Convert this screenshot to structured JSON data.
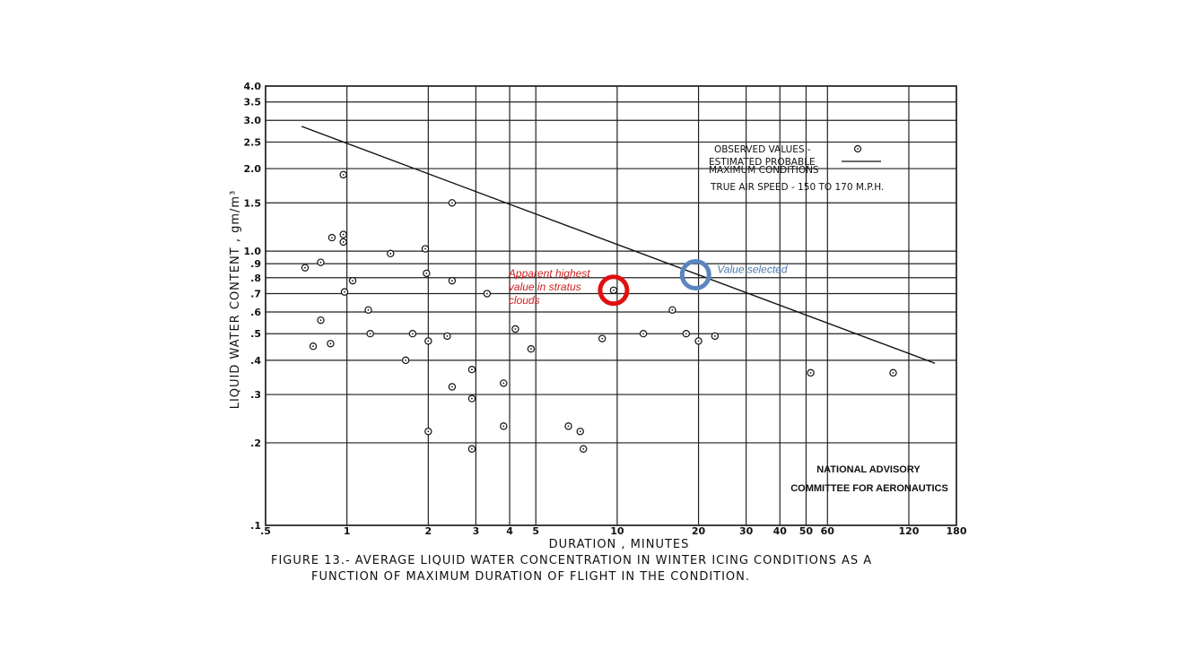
{
  "chart_data": {
    "type": "scatter",
    "title": "",
    "xlabel": "DURATION , MINUTES",
    "ylabel": "LIQUID WATER CONTENT ,  gm/m³",
    "xscale": "log",
    "yscale": "log",
    "xlim": [
      0.5,
      180
    ],
    "ylim": [
      0.1,
      4.0
    ],
    "grid": true,
    "x_ticks": [
      0.5,
      1,
      2,
      3,
      4,
      5,
      10,
      20,
      30,
      40,
      50,
      60,
      120,
      180
    ],
    "x_tick_labels": [
      ".5",
      "1",
      "2",
      "3",
      "4",
      "5",
      "10",
      "20",
      "30",
      "40",
      "50",
      "60",
      "120",
      "180"
    ],
    "y_ticks": [
      0.1,
      0.2,
      0.3,
      0.4,
      0.5,
      0.6,
      0.7,
      0.8,
      0.9,
      1.0,
      1.5,
      2.0,
      2.5,
      3.0,
      3.5,
      4.0
    ],
    "y_tick_labels": [
      ".1",
      ".2",
      ".3",
      ".4",
      ".5",
      ".6",
      ".7",
      ".8",
      ".9",
      "1.0",
      "1.5",
      "2.0",
      "2.5",
      "3.0",
      "3.5",
      "4.0"
    ],
    "series": [
      {
        "name": "OBSERVED VALUES",
        "marker": "circle-dot",
        "points": [
          [
            0.7,
            0.87
          ],
          [
            0.75,
            0.45
          ],
          [
            0.8,
            0.91
          ],
          [
            0.8,
            0.56
          ],
          [
            0.87,
            0.46
          ],
          [
            0.88,
            1.12
          ],
          [
            0.97,
            1.9
          ],
          [
            0.97,
            1.15
          ],
          [
            0.97,
            1.08
          ],
          [
            0.98,
            0.71
          ],
          [
            1.05,
            0.78
          ],
          [
            1.2,
            0.61
          ],
          [
            1.22,
            0.5
          ],
          [
            1.45,
            0.98
          ],
          [
            1.65,
            0.4
          ],
          [
            1.75,
            0.5
          ],
          [
            1.95,
            1.02
          ],
          [
            1.97,
            0.83
          ],
          [
            2.0,
            0.47
          ],
          [
            2.0,
            0.22
          ],
          [
            2.35,
            0.49
          ],
          [
            2.45,
            0.78
          ],
          [
            2.45,
            0.32
          ],
          [
            2.45,
            1.5
          ],
          [
            2.9,
            0.37
          ],
          [
            2.9,
            0.29
          ],
          [
            2.9,
            0.19
          ],
          [
            3.3,
            0.7
          ],
          [
            3.8,
            0.33
          ],
          [
            3.8,
            0.23
          ],
          [
            4.2,
            0.52
          ],
          [
            4.8,
            0.44
          ],
          [
            6.6,
            0.23
          ],
          [
            7.3,
            0.22
          ],
          [
            7.5,
            0.19
          ],
          [
            8.8,
            0.48
          ],
          [
            9.7,
            0.72
          ],
          [
            12.5,
            0.5
          ],
          [
            16.0,
            0.61
          ],
          [
            18.0,
            0.5
          ],
          [
            20.0,
            0.47
          ],
          [
            23.0,
            0.49
          ],
          [
            52.0,
            0.36
          ],
          [
            105.0,
            0.36
          ]
        ]
      },
      {
        "name": "ESTIMATED PROBABLE MAXIMUM CONDITIONS",
        "type": "line",
        "points": [
          [
            0.68,
            2.85
          ],
          [
            150.0,
            0.39
          ]
        ]
      }
    ],
    "legend": {
      "position": "top-right",
      "observed_label": "OBSERVED VALUES  -  ",
      "estimated_label_line1": "ESTIMATED PROBABLE",
      "estimated_label_line2": "MAXIMUM CONDITIONS",
      "air_speed_label": "TRUE AIR SPEED - 150 TO 170 M.P.H."
    },
    "credit_line1": "NATIONAL ADVISORY",
    "credit_line2": "COMMITTEE FOR AERONAUTICS",
    "annotations": [
      {
        "text": [
          "Apparent highest",
          "value in stratus",
          "clouds"
        ],
        "x": 9.7,
        "y": 0.72,
        "color": "#e01010",
        "text_color": "#cc2222"
      },
      {
        "text": [
          "Value selected"
        ],
        "x": 19.5,
        "y": 0.82,
        "color": "#5a86bd",
        "text_color": "#4a78b0"
      }
    ]
  },
  "caption": {
    "line1": "FIGURE 13.- AVERAGE LIQUID WATER CONCENTRATION IN WINTER ICING CONDITIONS AS A",
    "line2": "FUNCTION OF MAXIMUM DURATION OF FLIGHT IN THE CONDITION."
  }
}
